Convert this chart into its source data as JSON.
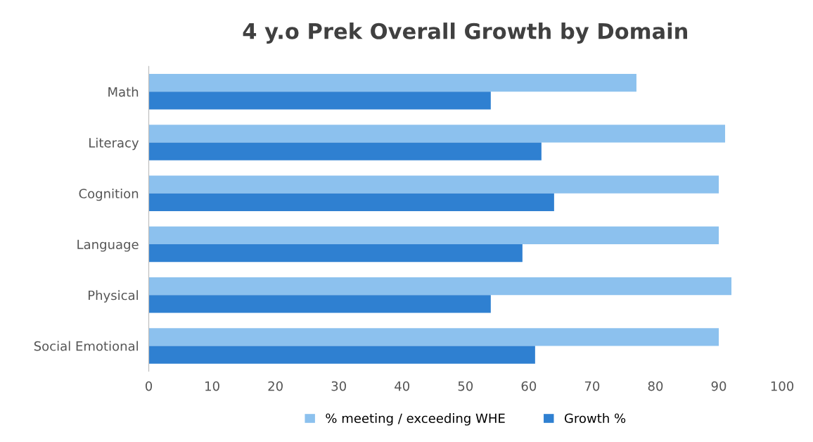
{
  "chart_data": {
    "type": "bar",
    "orientation": "horizontal",
    "title": "4 y.o Prek Overall Growth by Domain",
    "categories": [
      "Math",
      "Literacy",
      "Cognition",
      "Language",
      "Physical",
      "Social Emotional"
    ],
    "series": [
      {
        "name": "% meeting / exceeding WHE",
        "color": "#8cc1ee",
        "values": [
          77,
          91,
          90,
          90,
          92,
          90
        ]
      },
      {
        "name": "Growth %",
        "color": "#2f80d1",
        "values": [
          54,
          62,
          64,
          59,
          54,
          61
        ]
      }
    ],
    "xlim": [
      0,
      100
    ],
    "xticks": [
      0,
      10,
      20,
      30,
      40,
      50,
      60,
      70,
      80,
      90,
      100
    ],
    "grid": false,
    "legend": "bottom"
  }
}
